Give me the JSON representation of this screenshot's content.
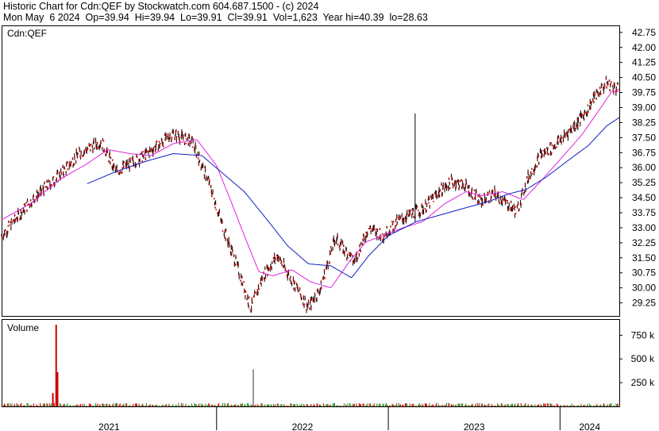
{
  "header": {
    "line1": "Historic Chart for Cdn:QEF by Stockwatch.com 604.687.1500 - (c) 2024",
    "line2": "Mon May  6 2024  Op=39.94  Hi=39.94  Lo=39.91  Cl=39.91  Vol=1,623  Year hi=40.39  lo=28.63"
  },
  "symbol": "Cdn:QEF",
  "volume_label": "Volume",
  "colors": {
    "price": "#cc0000",
    "bar": "#000000",
    "ma_short": "#e020e0",
    "ma_long": "#1020c0",
    "volume": "#cc0000",
    "volume_low": "#1a8a1a",
    "volume_spike_grey": "#999999"
  },
  "chart_data": [
    {
      "type": "line",
      "title": "",
      "ylim": [
        28.6,
        43.1
      ],
      "y_ticks": [
        "42.75",
        "42.00",
        "41.25",
        "40.50",
        "39.75",
        "39.00",
        "38.25",
        "37.50",
        "36.75",
        "36.00",
        "35.25",
        "34.50",
        "33.75",
        "33.00",
        "32.25",
        "31.50",
        "30.75",
        "30.00",
        "29.25"
      ],
      "x_ticks": [
        "2021",
        "2022",
        "2023",
        "2024"
      ],
      "x_dividers": [
        "2022-01-01",
        "2023-01-01",
        "2024-01-01"
      ],
      "x_start": "2020-10-01",
      "x_end": "2024-05-06",
      "spike": {
        "date": "2023-02-27",
        "high": 38.7,
        "low": 33.3
      },
      "series": [
        {
          "role": "price",
          "x": [
            "2020-10-01",
            "2020-12-01",
            "2021-02-01",
            "2021-03-15",
            "2021-05-01",
            "2021-06-01",
            "2021-08-01",
            "2021-10-01",
            "2021-11-10",
            "2021-12-15",
            "2022-01-15",
            "2022-02-15",
            "2022-03-15",
            "2022-04-10",
            "2022-05-10",
            "2022-06-15",
            "2022-07-15",
            "2022-08-10",
            "2022-09-10",
            "2022-10-20",
            "2022-11-20",
            "2022-12-20",
            "2023-01-20",
            "2023-02-20",
            "2023-03-20",
            "2023-04-15",
            "2023-05-15",
            "2023-06-15",
            "2023-07-15",
            "2023-08-15",
            "2023-09-10",
            "2023-10-01",
            "2023-10-25",
            "2023-11-20",
            "2023-12-20",
            "2024-01-20",
            "2024-02-20",
            "2024-03-20",
            "2024-04-10",
            "2024-05-06"
          ],
          "values": [
            32.6,
            34.3,
            35.6,
            36.7,
            37.3,
            35.8,
            36.6,
            37.7,
            37.3,
            35.3,
            33.0,
            31.0,
            29.0,
            30.6,
            31.6,
            30.2,
            29.0,
            30.0,
            32.5,
            31.3,
            33.0,
            32.6,
            33.3,
            33.7,
            34.0,
            34.7,
            35.3,
            35.1,
            34.3,
            34.7,
            34.2,
            33.8,
            35.5,
            36.6,
            37.1,
            37.8,
            38.6,
            39.7,
            40.2,
            39.9
          ]
        },
        {
          "role": "ma_short",
          "name": "",
          "x": [
            "2020-10-01",
            "2020-12-01",
            "2021-02-01",
            "2021-04-01",
            "2021-05-15",
            "2021-07-01",
            "2021-08-15",
            "2021-10-01",
            "2021-11-20",
            "2022-01-01",
            "2022-02-01",
            "2022-03-01",
            "2022-04-01",
            "2022-05-01",
            "2022-06-10",
            "2022-07-20",
            "2022-09-01",
            "2022-10-10",
            "2022-11-15",
            "2022-12-20",
            "2023-02-01",
            "2023-03-15",
            "2023-05-01",
            "2023-06-15",
            "2023-07-20",
            "2023-09-01",
            "2023-10-15",
            "2023-11-20",
            "2024-01-01",
            "2024-02-15",
            "2024-03-25",
            "2024-04-20",
            "2024-05-06"
          ],
          "values": [
            33.4,
            34.2,
            35.4,
            36.2,
            36.9,
            36.7,
            36.6,
            37.2,
            37.4,
            36.1,
            34.3,
            32.6,
            30.8,
            30.6,
            30.9,
            30.3,
            30.0,
            31.3,
            32.3,
            32.6,
            33.0,
            33.3,
            34.2,
            34.8,
            34.6,
            34.8,
            34.4,
            35.3,
            36.4,
            37.6,
            38.9,
            39.8,
            39.8
          ]
        },
        {
          "role": "ma_long",
          "name": "",
          "x": [
            "2021-04-01",
            "2021-06-01",
            "2021-08-01",
            "2021-10-01",
            "2021-12-01",
            "2022-01-15",
            "2022-03-01",
            "2022-04-15",
            "2022-06-01",
            "2022-07-15",
            "2022-09-01",
            "2022-10-15",
            "2022-11-20",
            "2023-01-01",
            "2023-03-01",
            "2023-05-01",
            "2023-06-15",
            "2023-08-01",
            "2023-09-15",
            "2023-10-20",
            "2023-12-01",
            "2024-01-15",
            "2024-03-01",
            "2024-04-10",
            "2024-05-06"
          ],
          "values": [
            35.2,
            35.8,
            36.3,
            36.7,
            36.6,
            35.7,
            34.8,
            33.5,
            32.1,
            31.2,
            31.1,
            30.5,
            31.6,
            32.6,
            33.3,
            33.7,
            34.0,
            34.3,
            34.7,
            34.9,
            35.5,
            36.3,
            37.1,
            38.1,
            38.5
          ]
        }
      ]
    },
    {
      "type": "bar",
      "title": "",
      "ylim": [
        0,
        920000
      ],
      "y_ticks": [
        "750 k",
        "500 k",
        "250 k"
      ],
      "y_tick_values": [
        750000,
        500000,
        250000
      ],
      "spikes": [
        {
          "x": "2021-01-25",
          "value": 860000
        },
        {
          "x": "2021-01-28",
          "value": 360000
        },
        {
          "x": "2021-01-18",
          "value": 140000
        },
        {
          "x": "2022-03-20",
          "value": 390000,
          "grey": true
        }
      ],
      "baseline_value": 30000
    }
  ]
}
